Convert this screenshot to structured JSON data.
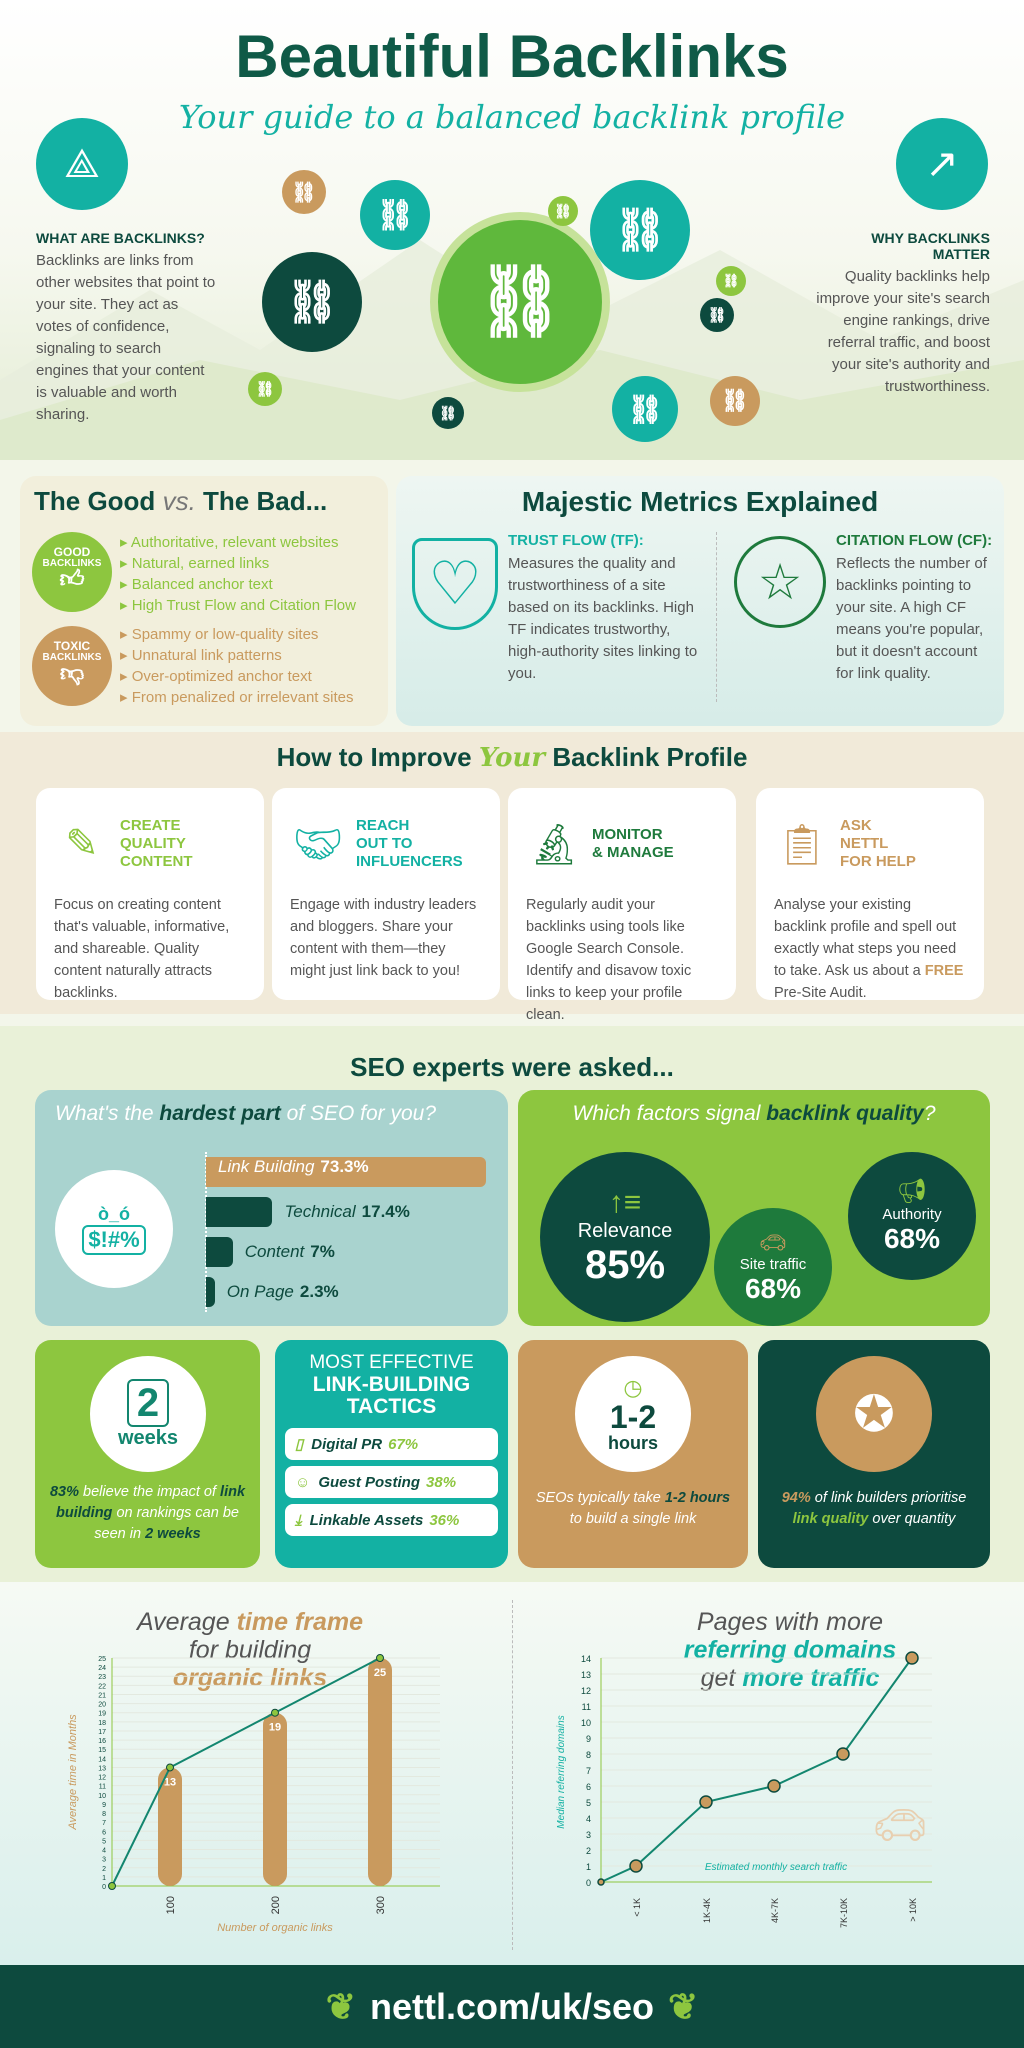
{
  "header": {
    "title": "Beautiful Backlinks",
    "subtitle": "Your guide to a balanced backlink profile"
  },
  "what": {
    "heading": "WHAT ARE BACKLINKS?",
    "text": "Backlinks are links from other websites that point to your site. They act as votes of confidence, signaling to search engines that your content is valuable and worth sharing.",
    "icon": "network-icon"
  },
  "why": {
    "heading": "WHY BACKLINKS MATTER",
    "text": "Quality backlinks help improve your site's search engine rankings, drive referral traffic, and boost your site's authority and trustworthiness.",
    "icon": "trend-chart-icon"
  },
  "goodbad": {
    "title_a": "The Good",
    "vs": "vs.",
    "title_b": "The Bad...",
    "good": {
      "badge_1": "GOOD",
      "badge_2": "BACKLINKS",
      "items": [
        "Authoritative, relevant websites",
        "Natural, earned links",
        "Balanced anchor text",
        "High Trust Flow and Citation Flow"
      ]
    },
    "toxic": {
      "badge_1": "TOXIC",
      "badge_2": "BACKLINKS",
      "items": [
        "Spammy or low-quality sites",
        "Unnatural link patterns",
        "Over-optimized anchor text",
        "From penalized or irrelevant sites"
      ]
    }
  },
  "metrics": {
    "title": "Majestic Metrics Explained",
    "tf": {
      "heading": "TRUST FLOW (TF):",
      "text": "Measures the quality and trustworthiness of a site based on its backlinks. High TF indicates trustworthy, high-authority sites linking to you."
    },
    "cf": {
      "heading": "CITATION FLOW (CF):",
      "text": "Reflects the number of backlinks pointing to your site. A high CF means you're popular, but it doesn't account for link quality."
    }
  },
  "improve": {
    "title_a": "How to Improve",
    "title_em": "Your",
    "title_b": "Backlink Profile",
    "cards": [
      {
        "l1": "CREATE",
        "l2": "QUALITY",
        "l3": "CONTENT",
        "text": "Focus on creating content that's valuable, informative, and shareable. Quality content naturally attracts backlinks.",
        "color": "#8dc63f"
      },
      {
        "l1": "REACH",
        "l2": "OUT TO",
        "l3": "INFLUENCERS",
        "text": "Engage with industry leaders and bloggers. Share your content with them—they might just link back to you!",
        "color": "#13b1a3"
      },
      {
        "l1": "",
        "l2": "MONITOR",
        "l3": "& MANAGE",
        "text": "Regularly audit your backlinks using tools like Google Search Console. Identify and disavow toxic links to keep your profile clean.",
        "color": "#1e7a3c"
      },
      {
        "l1": "ASK",
        "l2": "NETTL",
        "l3": "FOR HELP",
        "text_a": "Analyse your existing backlink profile and spell out exactly what steps you need to take. Ask us about a",
        "text_em": "FREE",
        "text_b": "Pre-Site Audit.",
        "color": "#c99a5e"
      }
    ]
  },
  "seo": {
    "title": "SEO experts were asked...",
    "hardest": {
      "q_a": "What's the",
      "q_em": "hardest part",
      "q_b": "of SEO for you?",
      "icon_text": "$!#%",
      "bars": [
        {
          "label": "Link Building",
          "value": 73.3,
          "display": "73.3%"
        },
        {
          "label": "Technical",
          "value": 17.4,
          "display": "17.4%"
        },
        {
          "label": "Content",
          "value": 7,
          "display": "7%"
        },
        {
          "label": "On Page",
          "value": 2.3,
          "display": "2.3%"
        }
      ]
    },
    "factors": {
      "q_a": "Which factors signal",
      "q_em": "backlink quality",
      "q_b": "?",
      "items": [
        {
          "label": "Relevance",
          "value": "85%"
        },
        {
          "label": "Site traffic",
          "value": "68%"
        },
        {
          "label": "Authority",
          "value": "68%"
        }
      ]
    },
    "weeks": {
      "num": "2",
      "unit": "weeks",
      "t1": "83%",
      "t2": "believe the impact of",
      "t3": "link building",
      "t4": "on rankings can be seen in",
      "t5": "2 weeks"
    },
    "tactics": {
      "h1": "MOST EFFECTIVE",
      "h2": "LINK-BUILDING",
      "h3": "TACTICS",
      "items": [
        {
          "label": "Digital PR",
          "value": "67%",
          "icon": "phone-icon"
        },
        {
          "label": "Guest Posting",
          "value": "38%",
          "icon": "smiley-icon"
        },
        {
          "label": "Linkable Assets",
          "value": "36%",
          "icon": "download-icon"
        }
      ]
    },
    "hours": {
      "num": "1-2",
      "unit": "hours",
      "t1": "SEOs typically take",
      "t2": "1-2 hours",
      "t3": "to build a single link"
    },
    "quality": {
      "t1": "94%",
      "t2": "of link builders prioritise",
      "t3": "link quality",
      "t4": "over quantity"
    }
  },
  "chart_data": [
    {
      "type": "bar",
      "title": "Average time frame for building organic links",
      "xlabel": "Number of organic links",
      "ylabel": "Average time in Months",
      "categories": [
        "100",
        "200",
        "300"
      ],
      "values": [
        13,
        19,
        25
      ],
      "line": {
        "x": [
          0,
          100,
          200,
          300
        ],
        "y": [
          0,
          13,
          19,
          25
        ]
      },
      "ylim": [
        0,
        25
      ],
      "grid": true
    },
    {
      "type": "line",
      "title": "Pages with more referring domains get more traffic",
      "xlabel": "Estimated monthly search traffic",
      "ylabel": "Median referring domains",
      "categories": [
        "< 1K",
        "1K-4K",
        "4K-7K",
        "7K-10K",
        "> 10K"
      ],
      "values": [
        1,
        5,
        6,
        8,
        14
      ],
      "origin": 0,
      "ylim": [
        0,
        14
      ],
      "grid": true
    }
  ],
  "chart_text": {
    "c1_a": "Average",
    "c1_em": "time frame",
    "c1_b": "for building",
    "c1_c": "organic links",
    "c2_a": "Pages with more",
    "c2_em": "referring domains",
    "c2_b": "get",
    "c2_c": "more traffic"
  },
  "footer": {
    "url": "nettl.com/uk/seo"
  },
  "colors": {
    "dark": "#0d4a3e",
    "teal": "#13b1a3",
    "lime": "#8dc63f",
    "tan": "#c99a5e"
  }
}
